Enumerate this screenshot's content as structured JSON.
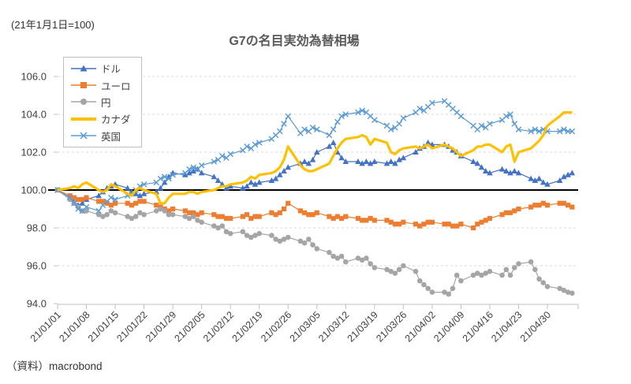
{
  "note": "(21年1月1日=100)",
  "title": "G7の名目実効為替相場",
  "source": "（資料）macrobond",
  "colors": {
    "dollar": "#4472C4",
    "euro": "#ED7D31",
    "yen": "#A5A5A5",
    "canada": "#FFC000",
    "uk": "#5B9BD5",
    "baseline": "#000000",
    "gridline": "#D9D9D9",
    "axis": "#BFBFBF",
    "label": "#404040"
  },
  "chart_data": {
    "type": "line",
    "title": "G7の名目実効為替相場",
    "index_note": "(21年1月1日=100)",
    "source": "（資料）macrobond",
    "ylim": [
      94,
      106
    ],
    "baseline": 100,
    "grid": "horizontal-dashed",
    "legend_position": "top-left-inside",
    "y_ticks": [
      106,
      104,
      102,
      100,
      98,
      96,
      94
    ],
    "x_tick_labels": [
      "21/01/01",
      "21/01/08",
      "21/01/15",
      "21/01/22",
      "21/01/29",
      "21/02/05",
      "21/02/12",
      "21/02/19",
      "21/02/26",
      "21/03/05",
      "21/03/12",
      "21/03/19",
      "21/03/26",
      "21/04/02",
      "21/04/09",
      "21/04/16",
      "21/04/23",
      "21/04/30"
    ],
    "dates": [
      "21/01/01",
      "21/01/04",
      "21/01/05",
      "21/01/06",
      "21/01/07",
      "21/01/08",
      "21/01/11",
      "21/01/12",
      "21/01/13",
      "21/01/14",
      "21/01/15",
      "21/01/18",
      "21/01/19",
      "21/01/20",
      "21/01/21",
      "21/01/22",
      "21/01/25",
      "21/01/26",
      "21/01/27",
      "21/01/28",
      "21/01/29",
      "21/02/01",
      "21/02/02",
      "21/02/03",
      "21/02/04",
      "21/02/05",
      "21/02/08",
      "21/02/09",
      "21/02/10",
      "21/02/11",
      "21/02/12",
      "21/02/15",
      "21/02/16",
      "21/02/17",
      "21/02/18",
      "21/02/19",
      "21/02/22",
      "21/02/23",
      "21/02/24",
      "21/02/25",
      "21/02/26",
      "21/03/01",
      "21/03/02",
      "21/03/03",
      "21/03/04",
      "21/03/05",
      "21/03/08",
      "21/03/09",
      "21/03/10",
      "21/03/11",
      "21/03/12",
      "21/03/15",
      "21/03/16",
      "21/03/17",
      "21/03/18",
      "21/03/19",
      "21/03/22",
      "21/03/23",
      "21/03/24",
      "21/03/25",
      "21/03/26",
      "21/03/29",
      "21/03/30",
      "21/03/31",
      "21/04/01",
      "21/04/02",
      "21/04/05",
      "21/04/06",
      "21/04/07",
      "21/04/08",
      "21/04/09",
      "21/04/12",
      "21/04/13",
      "21/04/14",
      "21/04/15",
      "21/04/16",
      "21/04/19",
      "21/04/20",
      "21/04/21",
      "21/04/22",
      "21/04/23",
      "21/04/26",
      "21/04/27",
      "21/04/28",
      "21/04/29",
      "21/04/30",
      "21/05/03",
      "21/05/04",
      "21/05/05",
      "21/05/06"
    ],
    "series": [
      {
        "name": "ドル",
        "color": "#4472C4",
        "marker": "triangle",
        "width": 1.2,
        "values": [
          100.0,
          99.6,
          99.4,
          99.2,
          99.3,
          99.5,
          99.7,
          99.9,
          100.1,
          100.2,
          100.3,
          100.1,
          99.9,
          99.8,
          99.7,
          99.8,
          99.9,
          100.1,
          100.4,
          100.7,
          100.9,
          100.8,
          100.9,
          101.0,
          101.1,
          100.9,
          100.7,
          100.5,
          100.3,
          100.1,
          100.2,
          100.1,
          100.2,
          100.4,
          100.3,
          100.4,
          100.5,
          100.6,
          100.8,
          101.0,
          101.2,
          101.4,
          101.5,
          101.4,
          101.6,
          102.0,
          102.3,
          102.5,
          102.0,
          101.7,
          101.5,
          101.5,
          101.4,
          101.5,
          101.4,
          101.5,
          101.4,
          101.5,
          101.4,
          101.6,
          101.7,
          102.0,
          102.2,
          102.3,
          102.5,
          102.4,
          102.4,
          102.3,
          102.1,
          102.0,
          101.8,
          101.5,
          101.4,
          101.2,
          101.0,
          100.9,
          101.1,
          101.0,
          100.9,
          101.0,
          100.9,
          100.6,
          100.5,
          100.6,
          100.4,
          100.3,
          100.5,
          100.7,
          100.8,
          100.9
        ]
      },
      {
        "name": "ユーロ",
        "color": "#ED7D31",
        "marker": "square",
        "width": 1.2,
        "values": [
          100.0,
          99.7,
          99.6,
          99.5,
          99.5,
          99.6,
          99.4,
          99.4,
          99.3,
          99.2,
          99.3,
          99.3,
          99.2,
          99.3,
          99.4,
          99.4,
          99.2,
          99.1,
          99.0,
          98.9,
          99.0,
          98.9,
          98.8,
          98.8,
          98.7,
          98.8,
          98.7,
          98.6,
          98.6,
          98.5,
          98.5,
          98.6,
          98.7,
          98.5,
          98.6,
          98.6,
          98.8,
          98.7,
          98.8,
          99.0,
          99.3,
          98.9,
          98.8,
          98.7,
          98.7,
          98.8,
          98.6,
          98.5,
          98.6,
          98.5,
          98.6,
          98.5,
          98.4,
          98.4,
          98.5,
          98.4,
          98.4,
          98.3,
          98.2,
          98.2,
          98.3,
          98.2,
          98.1,
          98.2,
          98.3,
          98.3,
          98.2,
          98.2,
          98.1,
          98.1,
          98.2,
          98.0,
          98.2,
          98.3,
          98.4,
          98.5,
          98.7,
          98.8,
          98.8,
          98.9,
          99.0,
          99.1,
          99.2,
          99.2,
          99.3,
          99.2,
          99.3,
          99.3,
          99.2,
          99.1
        ]
      },
      {
        "name": "円",
        "color": "#A5A5A5",
        "marker": "circle",
        "width": 1.2,
        "values": [
          100.0,
          99.5,
          99.3,
          99.1,
          98.9,
          98.9,
          98.7,
          98.6,
          98.7,
          98.9,
          98.8,
          98.6,
          98.5,
          98.6,
          98.8,
          98.7,
          98.9,
          99.0,
          98.9,
          98.7,
          98.7,
          98.6,
          98.5,
          98.6,
          98.4,
          98.3,
          98.1,
          98.0,
          98.1,
          97.8,
          97.7,
          97.8,
          97.6,
          97.5,
          97.6,
          97.7,
          97.6,
          97.4,
          97.3,
          97.4,
          97.5,
          97.3,
          97.2,
          97.4,
          97.1,
          96.9,
          96.7,
          96.5,
          96.4,
          96.5,
          96.2,
          96.4,
          96.3,
          96.4,
          96.1,
          95.9,
          95.8,
          95.7,
          95.6,
          95.8,
          96.0,
          95.7,
          95.2,
          95.0,
          94.8,
          94.6,
          94.6,
          94.5,
          94.8,
          95.5,
          95.2,
          95.5,
          95.6,
          95.5,
          95.6,
          95.7,
          95.5,
          95.8,
          95.5,
          95.9,
          96.1,
          96.2,
          95.8,
          95.3,
          95.1,
          94.9,
          94.8,
          94.7,
          94.6,
          94.55
        ]
      },
      {
        "name": "英国",
        "color": "#5B9BD5",
        "marker": "x",
        "width": 1.2,
        "values": [
          100.0,
          99.6,
          99.3,
          99.0,
          98.9,
          99.1,
          98.9,
          99.2,
          99.4,
          99.6,
          99.5,
          99.7,
          99.8,
          100.0,
          100.2,
          100.3,
          100.4,
          100.6,
          100.7,
          100.6,
          100.8,
          100.9,
          101.1,
          101.2,
          101.1,
          101.3,
          101.5,
          101.6,
          101.8,
          101.7,
          101.9,
          102.1,
          102.3,
          102.2,
          102.4,
          102.5,
          102.7,
          102.9,
          103.1,
          103.5,
          103.9,
          103.0,
          103.2,
          103.1,
          103.3,
          103.2,
          102.9,
          103.2,
          103.6,
          103.9,
          104.0,
          104.1,
          104.2,
          104.1,
          103.9,
          103.7,
          103.4,
          103.2,
          103.3,
          103.5,
          103.8,
          104.1,
          104.3,
          104.2,
          104.4,
          104.6,
          104.7,
          104.5,
          104.3,
          104.1,
          103.9,
          103.4,
          103.2,
          103.4,
          103.3,
          103.5,
          103.7,
          103.9,
          104.0,
          103.5,
          103.2,
          103.1,
          103.2,
          103.1,
          103.2,
          103.1,
          103.1,
          103.2,
          103.1,
          103.1
        ]
      },
      {
        "name": "カナダ",
        "color": "#FFC000",
        "marker": "none",
        "width": 3.2,
        "values": [
          100.0,
          100.1,
          100.2,
          100.1,
          100.3,
          100.4,
          100.0,
          99.9,
          100.0,
          100.3,
          100.2,
          99.8,
          99.7,
          100.0,
          100.1,
          100.0,
          99.8,
          99.3,
          99.3,
          99.6,
          99.8,
          99.8,
          99.9,
          99.9,
          99.8,
          99.9,
          100.0,
          100.1,
          100.2,
          100.2,
          100.3,
          100.4,
          100.5,
          100.7,
          100.6,
          100.8,
          100.9,
          101.0,
          101.2,
          101.6,
          102.3,
          101.3,
          101.1,
          101.0,
          101.0,
          101.1,
          101.4,
          101.8,
          102.2,
          102.5,
          102.7,
          102.8,
          102.9,
          102.8,
          102.4,
          102.7,
          102.5,
          102.0,
          101.9,
          102.1,
          102.2,
          102.3,
          102.2,
          102.3,
          102.4,
          102.2,
          102.4,
          102.3,
          102.2,
          102.0,
          101.8,
          102.1,
          102.3,
          102.3,
          102.4,
          102.4,
          102.0,
          102.3,
          102.4,
          101.5,
          102.0,
          102.2,
          102.4,
          102.6,
          102.9,
          103.4,
          103.9,
          104.1,
          104.1,
          104.1
        ]
      }
    ]
  },
  "legend_order": [
    "ドル",
    "ユーロ",
    "円",
    "カナダ",
    "英国"
  ]
}
